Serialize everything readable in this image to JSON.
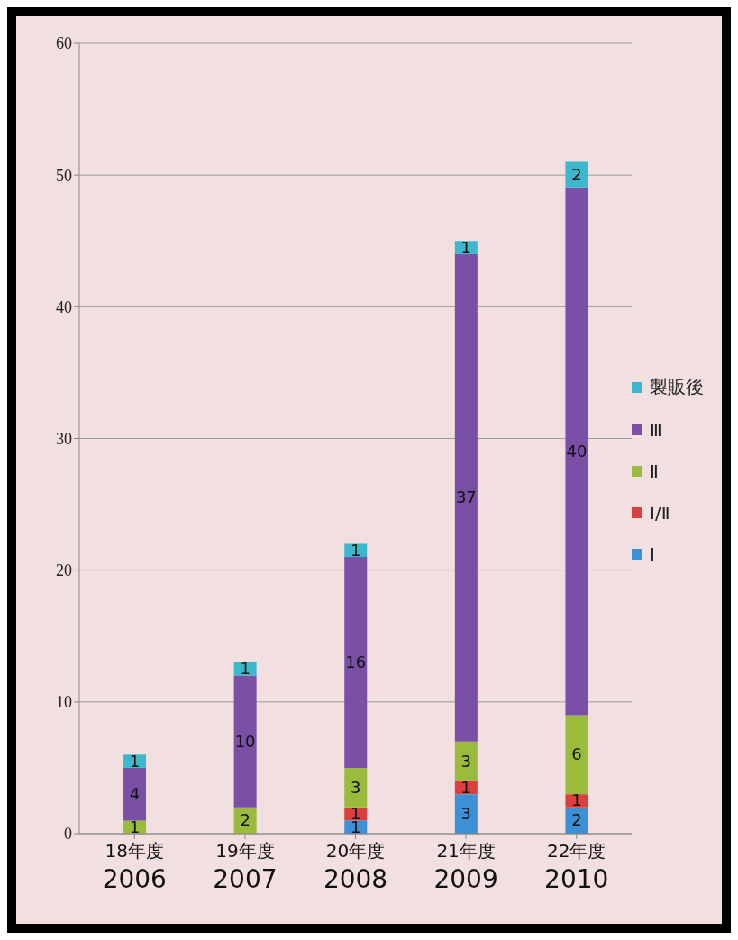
{
  "chart_data": {
    "type": "bar",
    "stacked": true,
    "categories": [
      "18年度\n2006",
      "19年度\n2007",
      "20年度\n2008",
      "21年度\n2009",
      "22年度\n2010"
    ],
    "series": [
      {
        "name": "Ⅰ",
        "color": "#3d8fd6",
        "values": [
          0,
          0,
          1,
          3,
          2
        ],
        "value_labels": [
          null,
          null,
          "1",
          "3",
          "2"
        ]
      },
      {
        "name": "Ⅰ/Ⅱ",
        "color": "#d9403e",
        "values": [
          0,
          0,
          1,
          1,
          1
        ],
        "value_labels": [
          null,
          null,
          "1",
          "1",
          "1"
        ]
      },
      {
        "name": "Ⅱ",
        "color": "#9bbb3c",
        "values": [
          1,
          2,
          3,
          3,
          6
        ],
        "value_labels": [
          "1",
          "2",
          "3",
          "3",
          "6"
        ]
      },
      {
        "name": "Ⅲ",
        "color": "#7a4fa6",
        "values": [
          4,
          10,
          16,
          37,
          40
        ],
        "value_labels": [
          "4",
          "10",
          "16",
          "37",
          "40"
        ]
      },
      {
        "name": "製販後",
        "color": "#3bb8cc",
        "values": [
          1,
          1,
          1,
          1,
          2
        ],
        "value_labels": [
          "1",
          "1",
          "1",
          "1",
          "2"
        ]
      }
    ],
    "ylim": [
      0,
      60
    ],
    "yticks": [
      0,
      10,
      20,
      30,
      40,
      50,
      60
    ],
    "grid": "y",
    "legend": "right"
  }
}
